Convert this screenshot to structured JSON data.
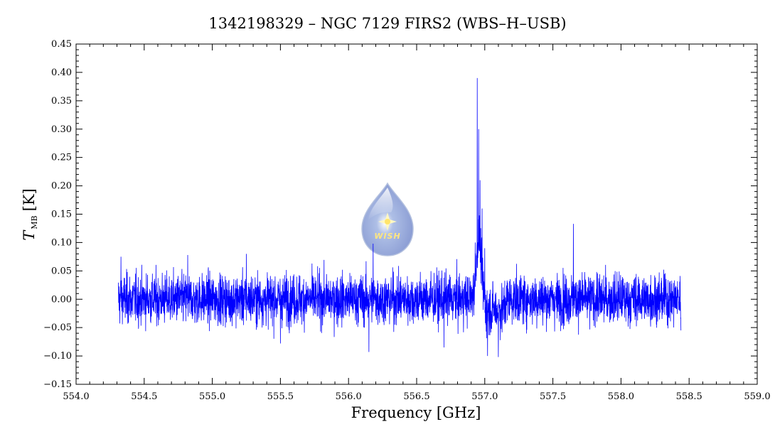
{
  "chart_data": {
    "type": "line",
    "title": "1342198329 – NGC 7129 FIRS2 (WBS–H–USB)",
    "xlabel": "Frequency [GHz]",
    "ylabel_main": "T",
    "ylabel_sub": "MB",
    "ylabel_unit": "[K]",
    "xlim": [
      554.0,
      559.0
    ],
    "ylim": [
      -0.15,
      0.45
    ],
    "xticks": [
      554.0,
      554.5,
      555.0,
      555.5,
      556.0,
      556.5,
      557.0,
      557.5,
      558.0,
      558.5,
      559.0
    ],
    "xtick_labels": [
      "554.0",
      "554.5",
      "555.0",
      "555.5",
      "556.0",
      "556.5",
      "557.0",
      "557.5",
      "558.0",
      "558.5",
      "559.0"
    ],
    "yticks": [
      -0.15,
      -0.1,
      -0.05,
      0.0,
      0.05,
      0.1,
      0.15,
      0.2,
      0.25,
      0.3,
      0.35,
      0.4,
      0.45
    ],
    "ytick_labels": [
      "−0.15",
      "−0.10",
      "−0.05",
      "0.00",
      "0.05",
      "0.10",
      "0.15",
      "0.20",
      "0.25",
      "0.30",
      "0.35",
      "0.40",
      "0.45"
    ],
    "grid": false,
    "series": [
      {
        "color": "#0000ff",
        "x_range": [
          554.31,
          558.44
        ],
        "noise_rms": 0.022,
        "features": [
          {
            "x": 554.33,
            "y": 0.075
          },
          {
            "x": 554.82,
            "y": 0.078
          },
          {
            "x": 555.25,
            "y": 0.08
          },
          {
            "x": 555.5,
            "y": -0.078
          },
          {
            "x": 556.15,
            "y": -0.093
          },
          {
            "x": 556.18,
            "y": 0.098
          },
          {
            "x": 556.7,
            "y": -0.085
          },
          {
            "x": 556.93,
            "y": 0.1
          },
          {
            "x": 556.945,
            "y": 0.39
          },
          {
            "x": 556.955,
            "y": 0.3
          },
          {
            "x": 556.965,
            "y": 0.21
          },
          {
            "x": 556.98,
            "y": 0.16
          },
          {
            "x": 557.0,
            "y": 0.09
          },
          {
            "x": 557.02,
            "y": -0.1
          },
          {
            "x": 557.1,
            "y": -0.102
          },
          {
            "x": 557.65,
            "y": 0.133
          },
          {
            "x": 558.44,
            "y": -0.055
          }
        ]
      }
    ]
  },
  "logo": {
    "text": "WISH",
    "color_top": "#c9d6ec",
    "color_bottom": "#7f95d0"
  }
}
